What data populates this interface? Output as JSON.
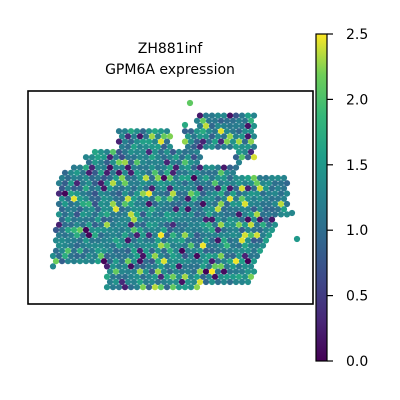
{
  "chart_data": {
    "type": "scatter",
    "subtype": "spatial-hexbin",
    "title_lines": [
      "ZH881inf",
      "GPM6A expression"
    ],
    "colormap": "viridis",
    "color_range": [
      0.0,
      2.5
    ],
    "colorbar": {
      "ticks": [
        0.0,
        0.5,
        1.0,
        1.5,
        2.0,
        2.5
      ],
      "tick_labels": [
        "0.0",
        "0.5",
        "1.0",
        "1.5",
        "2.0",
        "2.5"
      ],
      "placement": "right"
    },
    "axes_visible": false,
    "grid": false,
    "value_distribution": "mostly 0.8-1.7, scattered high spots up to 2.5 and low spots near 0.0"
  }
}
